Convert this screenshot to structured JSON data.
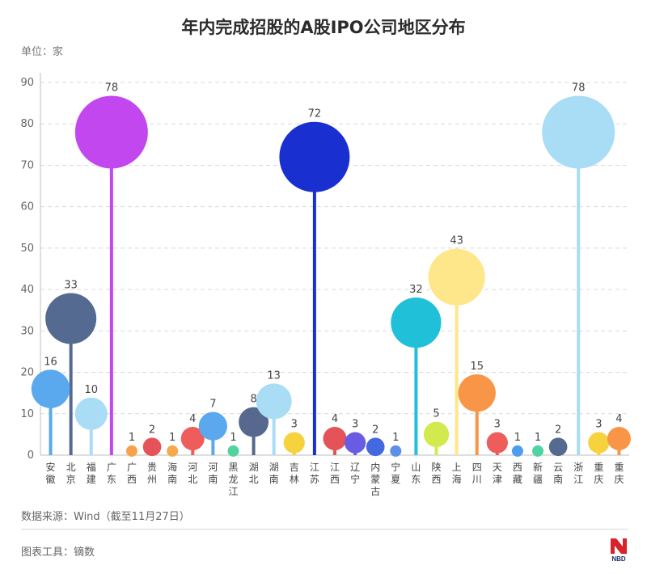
{
  "header": {
    "title": "年内完成招股的A股IPO公司地区分布",
    "unit": "单位：家"
  },
  "footer": {
    "source": "数据来源：Wind（截至11月27日）",
    "tool": "图表工具：镝数",
    "logo": "NBD"
  },
  "colors": {
    "安徽": "#5aa9ef",
    "北京": "#556a91",
    "福建": "#a9dcf5",
    "广东": "#c347ee",
    "广西": "#f9a24d",
    "贵州": "#e55358",
    "海南": "#f5a84e",
    "河北": "#ef5c5c",
    "河南": "#5ba8ee",
    "黑龙江": "#52d39e",
    "湖北": "#56688d",
    "湖南": "#a9dcf5",
    "吉林": "#f6d23c",
    "江苏": "#1a2fd0",
    "江西": "#e55358",
    "辽宁": "#6a5be3",
    "内蒙古": "#4368e0",
    "宁夏": "#5b8fe8",
    "山东": "#21c0d9",
    "陕西": "#d3ea4e",
    "上海": "#fee68a",
    "四川": "#f99546",
    "天津": "#ef5c5c",
    "西藏": "#4e9ded",
    "新疆": "#51d3a0",
    "云南": "#556a91",
    "浙江": "#a9dcf5",
    "重庆": "#f6d23c",
    "重庆2": "#f99546"
  },
  "chart_data": {
    "type": "bubble-lollipop",
    "title": "年内完成招股的A股IPO公司地区分布",
    "ylabel": "单位：家",
    "ylim": [
      0,
      90
    ],
    "yticks": [
      0,
      10,
      20,
      30,
      40,
      50,
      60,
      70,
      80,
      90
    ],
    "grid": true,
    "categories": [
      "安徽",
      "北京",
      "福建",
      "广东",
      "广西",
      "贵州",
      "海南",
      "河北",
      "河南",
      "黑龙江",
      "湖北",
      "湖南",
      "吉林",
      "江苏",
      "江西",
      "辽宁",
      "内蒙古",
      "宁夏",
      "山东",
      "陕西",
      "上海",
      "四川",
      "天津",
      "西藏",
      "新疆",
      "云南",
      "浙江",
      "重庆",
      "重庆"
    ],
    "values": [
      16,
      33,
      10,
      78,
      1,
      2,
      1,
      4,
      7,
      1,
      8,
      13,
      3,
      72,
      4,
      3,
      2,
      1,
      32,
      5,
      43,
      15,
      3,
      1,
      1,
      2,
      78,
      3,
      4
    ],
    "color_keys": [
      "安徽",
      "北京",
      "福建",
      "广东",
      "广西",
      "贵州",
      "海南",
      "河北",
      "河南",
      "黑龙江",
      "湖北",
      "湖南",
      "吉林",
      "江苏",
      "江西",
      "辽宁",
      "内蒙古",
      "宁夏",
      "山东",
      "陕西",
      "上海",
      "四川",
      "天津",
      "西藏",
      "新疆",
      "云南",
      "浙江",
      "重庆",
      "重庆2"
    ]
  }
}
